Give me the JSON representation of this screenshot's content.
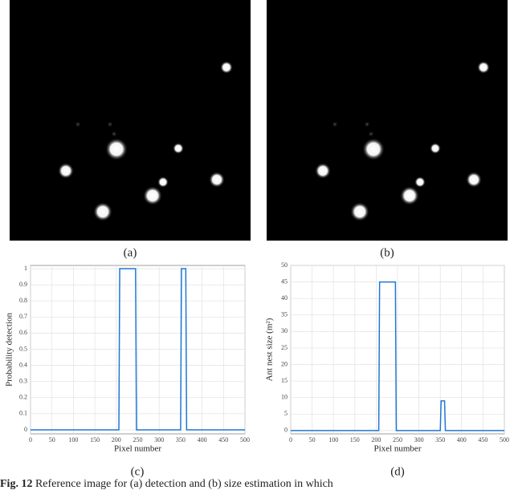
{
  "panel_labels": [
    "(a)",
    "(b)",
    "(c)",
    "(d)"
  ],
  "caption": {
    "label": "Fig. 12",
    "text": "Reference image for (a) detection and (b) size estimation in which"
  },
  "chart_data": [
    {
      "type": "line",
      "xlabel": "Pixel number",
      "ylabel": "Probability detection",
      "x": [
        0,
        206,
        208,
        245,
        247,
        350,
        352,
        362,
        364,
        500
      ],
      "values": [
        0,
        0,
        1,
        1,
        0,
        0,
        1,
        1,
        0,
        0
      ],
      "color": "#1f77d4",
      "xlim": [
        0,
        500
      ],
      "xticks": [
        0,
        50,
        100,
        150,
        200,
        250,
        300,
        350,
        400,
        450,
        500
      ],
      "ylim": [
        -0.025,
        1.02
      ],
      "yticks": [
        0,
        0.1,
        0.2,
        0.3,
        0.4,
        0.5,
        0.6,
        0.7,
        0.8,
        0.9,
        1
      ],
      "grid": true
    },
    {
      "type": "line",
      "xlabel": "Pixel number",
      "ylabel": "Ant nest size (m²)",
      "x": [
        0,
        206,
        208,
        245,
        247,
        350,
        352,
        360,
        362,
        500
      ],
      "values": [
        0,
        0,
        45,
        45,
        0,
        0,
        9,
        9,
        0,
        0
      ],
      "color": "#1f77d4",
      "xlim": [
        0,
        500
      ],
      "xticks": [
        0,
        50,
        100,
        150,
        200,
        250,
        300,
        350,
        400,
        450,
        500
      ],
      "ylim": [
        -1,
        50
      ],
      "yticks": [
        0,
        5,
        10,
        15,
        20,
        25,
        30,
        35,
        40,
        45,
        50
      ],
      "grid": true
    }
  ]
}
